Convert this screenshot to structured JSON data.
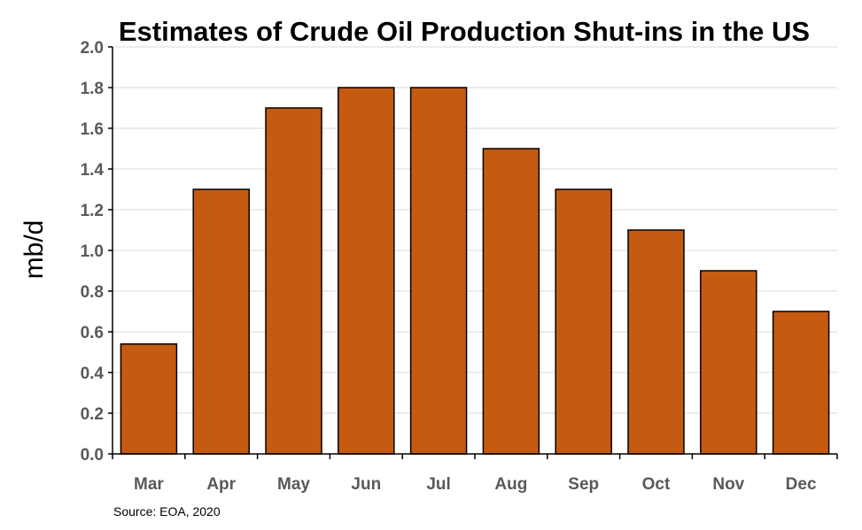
{
  "chart_data": {
    "type": "bar",
    "title": "Estimates of Crude Oil Production Shut-ins in the US",
    "ylabel": "mb/d",
    "xlabel": "",
    "categories": [
      "Mar",
      "Apr",
      "May",
      "Jun",
      "Jul",
      "Aug",
      "Sep",
      "Oct",
      "Nov",
      "Dec"
    ],
    "values": [
      0.54,
      1.3,
      1.7,
      1.8,
      1.8,
      1.5,
      1.3,
      1.1,
      0.9,
      0.7
    ],
    "ylim": [
      0,
      2.0
    ],
    "yticks": [
      "0.0",
      "0.2",
      "0.4",
      "0.6",
      "0.8",
      "1.0",
      "1.2",
      "1.4",
      "1.6",
      "1.8",
      "2.0"
    ],
    "grid": true,
    "bar_color": "#c55a11",
    "source": "Source: EOA, 2020"
  }
}
